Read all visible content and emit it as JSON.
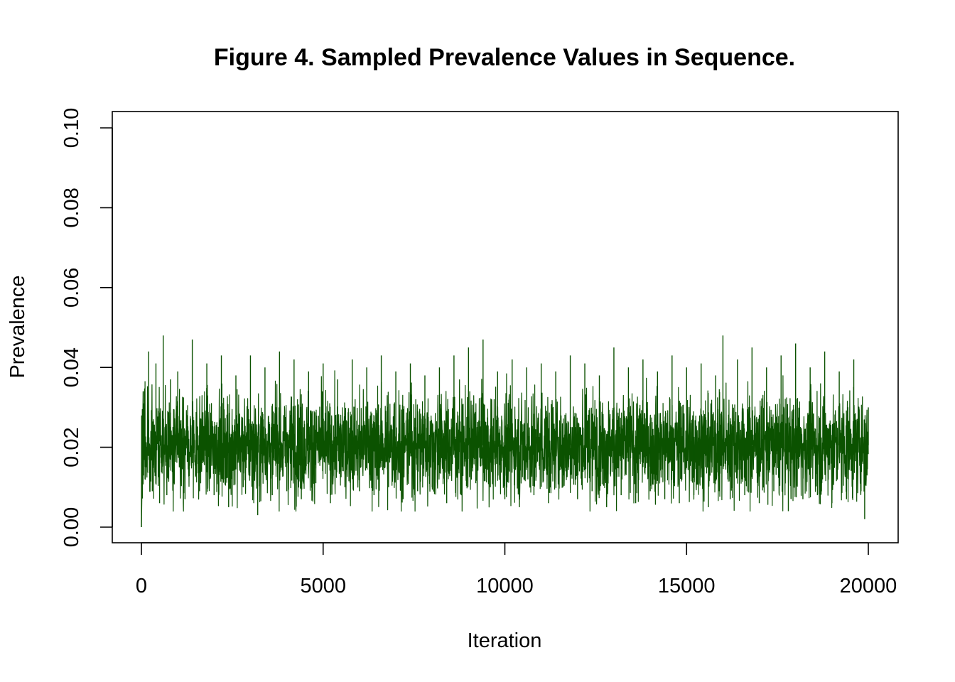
{
  "chart_data": {
    "type": "line",
    "title": "Figure 4. Sampled Prevalence Values in Sequence.",
    "xlabel": "Iteration",
    "ylabel": "Prevalence",
    "xlim": [
      0,
      20000
    ],
    "ylim": [
      0,
      0.1
    ],
    "x_ticks": [
      0,
      5000,
      10000,
      15000,
      20000
    ],
    "x_tick_labels": [
      "0",
      "5000",
      "10000",
      "15000",
      "20000"
    ],
    "y_ticks": [
      0,
      0.02,
      0.04,
      0.06,
      0.08,
      0.1
    ],
    "y_tick_labels": [
      "0.00",
      "0.02",
      "0.04",
      "0.06",
      "0.08",
      "0.10"
    ],
    "grid": false,
    "legend": "none",
    "series_color": "#0b5200",
    "series": [
      {
        "x": [
          0,
          50,
          100,
          200,
          300,
          400,
          500,
          600,
          700,
          800,
          900,
          1000,
          1200,
          1400,
          1600,
          1800,
          2000,
          2200,
          2400,
          2600,
          2800,
          3000,
          3200,
          3400,
          3600,
          3800,
          4000,
          4200,
          4400,
          4600,
          4800,
          5000,
          5200,
          5400,
          5600,
          5800,
          6000,
          6200,
          6400,
          6600,
          6800,
          7000,
          7200,
          7400,
          7600,
          7800,
          8000,
          8200,
          8400,
          8600,
          8800,
          9000,
          9200,
          9400,
          9600,
          9800,
          10000,
          10200,
          10400,
          10600,
          10800,
          11000,
          11200,
          11400,
          11600,
          11800,
          12000,
          12200,
          12400,
          12600,
          12800,
          13000,
          13200,
          13400,
          13600,
          13800,
          14000,
          14200,
          14400,
          14600,
          14800,
          15000,
          15200,
          15400,
          15600,
          15800,
          15900,
          16000,
          16200,
          16400,
          16600,
          16800,
          17000,
          17200,
          17400,
          17600,
          17800,
          18000,
          18200,
          18400,
          18600,
          18800,
          19000,
          19200,
          19400,
          19600,
          19800,
          19900,
          20000
        ],
        "values": [
          0.0,
          0.034,
          0.012,
          0.044,
          0.009,
          0.041,
          0.006,
          0.048,
          0.008,
          0.037,
          0.011,
          0.039,
          0.007,
          0.047,
          0.009,
          0.041,
          0.008,
          0.043,
          0.005,
          0.038,
          0.01,
          0.043,
          0.003,
          0.04,
          0.008,
          0.044,
          0.009,
          0.042,
          0.007,
          0.039,
          0.011,
          0.041,
          0.006,
          0.037,
          0.01,
          0.042,
          0.009,
          0.04,
          0.008,
          0.043,
          0.01,
          0.039,
          0.007,
          0.041,
          0.009,
          0.038,
          0.01,
          0.04,
          0.006,
          0.043,
          0.008,
          0.045,
          0.011,
          0.047,
          0.01,
          0.039,
          0.007,
          0.042,
          0.005,
          0.04,
          0.008,
          0.041,
          0.006,
          0.039,
          0.01,
          0.043,
          0.007,
          0.041,
          0.009,
          0.038,
          0.005,
          0.045,
          0.008,
          0.04,
          0.006,
          0.042,
          0.009,
          0.039,
          0.007,
          0.043,
          0.006,
          0.04,
          0.008,
          0.041,
          0.005,
          0.038,
          0.009,
          0.048,
          0.007,
          0.042,
          0.008,
          0.045,
          0.006,
          0.04,
          0.009,
          0.043,
          0.004,
          0.046,
          0.007,
          0.04,
          0.008,
          0.044,
          0.006,
          0.039,
          0.007,
          0.042,
          0.009,
          0.002,
          0.03
        ]
      }
    ]
  }
}
